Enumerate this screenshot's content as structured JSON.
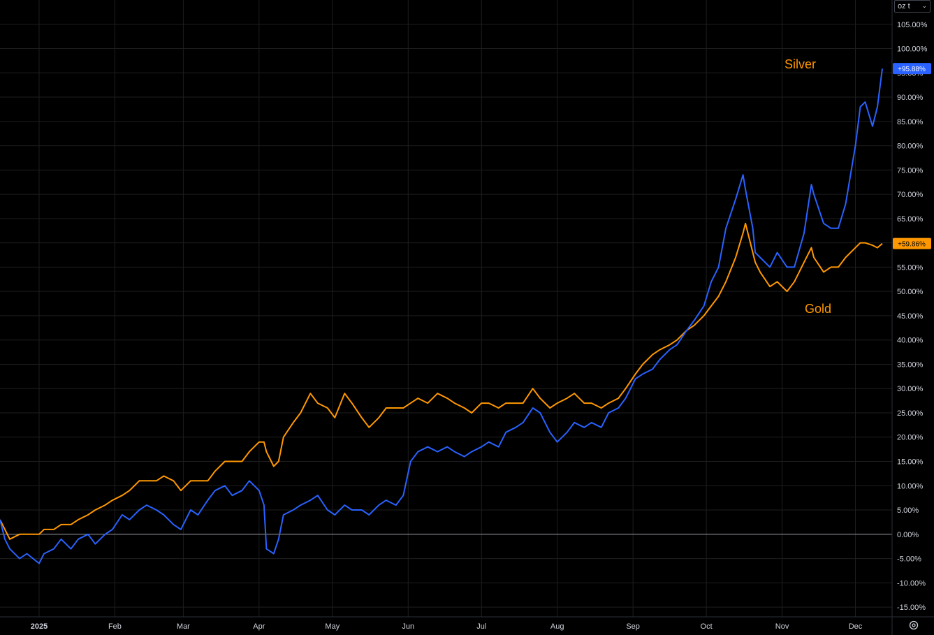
{
  "unit_selector": {
    "value": "oz t",
    "icon": "chevron-down-icon"
  },
  "settings": {
    "icon": "gear-icon"
  },
  "colors": {
    "silver": "#2962ff",
    "gold": "#ff9800",
    "background": "#000000",
    "grid": "#1e1e1e",
    "text": "#d1d4dc",
    "zero_line": "#9598a1"
  },
  "chart_data": {
    "type": "line",
    "y_axis": {
      "min": -17,
      "max": 110,
      "unit": "%",
      "position": "right",
      "ticks": [
        "105.00%",
        "100.00%",
        "95.00%",
        "90.00%",
        "85.00%",
        "80.00%",
        "75.00%",
        "70.00%",
        "65.00%",
        "60.00%",
        "55.00%",
        "50.00%",
        "45.00%",
        "40.00%",
        "35.00%",
        "30.00%",
        "25.00%",
        "20.00%",
        "15.00%",
        "10.00%",
        "5.00%",
        "0.00%",
        "-5.00%",
        "-10.00%",
        "-15.00%"
      ],
      "tick_values": [
        105,
        100,
        95,
        90,
        85,
        80,
        75,
        70,
        65,
        60,
        55,
        50,
        45,
        40,
        35,
        30,
        25,
        20,
        15,
        10,
        5,
        0,
        -5,
        -10,
        -15
      ]
    },
    "x_axis": {
      "range": [
        "2024-12-16",
        "2025-12-16"
      ],
      "labels": [
        {
          "label": "2025",
          "date": "2025-01-01",
          "bold": true
        },
        {
          "label": "Feb",
          "date": "2025-02-01"
        },
        {
          "label": "Mar",
          "date": "2025-03-01"
        },
        {
          "label": "Apr",
          "date": "2025-04-01"
        },
        {
          "label": "May",
          "date": "2025-05-01"
        },
        {
          "label": "Jun",
          "date": "2025-06-01"
        },
        {
          "label": "Jul",
          "date": "2025-07-01"
        },
        {
          "label": "Aug",
          "date": "2025-08-01"
        },
        {
          "label": "Sep",
          "date": "2025-09-01"
        },
        {
          "label": "Oct",
          "date": "2025-10-01"
        },
        {
          "label": "Nov",
          "date": "2025-11-01"
        },
        {
          "label": "Dec",
          "date": "2025-12-01"
        }
      ]
    },
    "grid": true,
    "series": [
      {
        "name": "Silver",
        "color": "#2962ff",
        "last_label": "+95.88%",
        "points": [
          [
            "2024-12-16",
            3
          ],
          [
            "2024-12-18",
            -1
          ],
          [
            "2024-12-20",
            -3
          ],
          [
            "2024-12-24",
            -5
          ],
          [
            "2024-12-27",
            -4
          ],
          [
            "2025-01-01",
            -6
          ],
          [
            "2025-01-03",
            -4
          ],
          [
            "2025-01-07",
            -3
          ],
          [
            "2025-01-10",
            -1
          ],
          [
            "2025-01-14",
            -3
          ],
          [
            "2025-01-17",
            -1
          ],
          [
            "2025-01-21",
            0
          ],
          [
            "2025-01-24",
            -2
          ],
          [
            "2025-01-28",
            0
          ],
          [
            "2025-01-31",
            1
          ],
          [
            "2025-02-04",
            4
          ],
          [
            "2025-02-07",
            3
          ],
          [
            "2025-02-11",
            5
          ],
          [
            "2025-02-14",
            6
          ],
          [
            "2025-02-18",
            5
          ],
          [
            "2025-02-21",
            4
          ],
          [
            "2025-02-25",
            2
          ],
          [
            "2025-02-28",
            1
          ],
          [
            "2025-03-04",
            5
          ],
          [
            "2025-03-07",
            4
          ],
          [
            "2025-03-11",
            7
          ],
          [
            "2025-03-14",
            9
          ],
          [
            "2025-03-18",
            10
          ],
          [
            "2025-03-21",
            8
          ],
          [
            "2025-03-25",
            9
          ],
          [
            "2025-03-28",
            11
          ],
          [
            "2025-04-01",
            9
          ],
          [
            "2025-04-03",
            6
          ],
          [
            "2025-04-04",
            -3
          ],
          [
            "2025-04-07",
            -4
          ],
          [
            "2025-04-09",
            -1
          ],
          [
            "2025-04-11",
            4
          ],
          [
            "2025-04-15",
            5
          ],
          [
            "2025-04-18",
            6
          ],
          [
            "2025-04-22",
            7
          ],
          [
            "2025-04-25",
            8
          ],
          [
            "2025-04-29",
            5
          ],
          [
            "2025-05-02",
            4
          ],
          [
            "2025-05-06",
            6
          ],
          [
            "2025-05-09",
            5
          ],
          [
            "2025-05-13",
            5
          ],
          [
            "2025-05-16",
            4
          ],
          [
            "2025-05-20",
            6
          ],
          [
            "2025-05-23",
            7
          ],
          [
            "2025-05-27",
            6
          ],
          [
            "2025-05-30",
            8
          ],
          [
            "2025-06-02",
            15
          ],
          [
            "2025-06-05",
            17
          ],
          [
            "2025-06-09",
            18
          ],
          [
            "2025-06-13",
            17
          ],
          [
            "2025-06-17",
            18
          ],
          [
            "2025-06-20",
            17
          ],
          [
            "2025-06-24",
            16
          ],
          [
            "2025-06-27",
            17
          ],
          [
            "2025-07-01",
            18
          ],
          [
            "2025-07-04",
            19
          ],
          [
            "2025-07-08",
            18
          ],
          [
            "2025-07-11",
            21
          ],
          [
            "2025-07-15",
            22
          ],
          [
            "2025-07-18",
            23
          ],
          [
            "2025-07-22",
            26
          ],
          [
            "2025-07-25",
            25
          ],
          [
            "2025-07-29",
            21
          ],
          [
            "2025-08-01",
            19
          ],
          [
            "2025-08-05",
            21
          ],
          [
            "2025-08-08",
            23
          ],
          [
            "2025-08-12",
            22
          ],
          [
            "2025-08-15",
            23
          ],
          [
            "2025-08-19",
            22
          ],
          [
            "2025-08-22",
            25
          ],
          [
            "2025-08-26",
            26
          ],
          [
            "2025-08-29",
            28
          ],
          [
            "2025-09-02",
            32
          ],
          [
            "2025-09-05",
            33
          ],
          [
            "2025-09-09",
            34
          ],
          [
            "2025-09-12",
            36
          ],
          [
            "2025-09-16",
            38
          ],
          [
            "2025-09-19",
            39
          ],
          [
            "2025-09-23",
            42
          ],
          [
            "2025-09-26",
            44
          ],
          [
            "2025-09-30",
            47
          ],
          [
            "2025-10-03",
            52
          ],
          [
            "2025-10-06",
            55
          ],
          [
            "2025-10-09",
            63
          ],
          [
            "2025-10-13",
            69
          ],
          [
            "2025-10-16",
            74
          ],
          [
            "2025-10-17",
            71
          ],
          [
            "2025-10-20",
            63
          ],
          [
            "2025-10-21",
            58
          ],
          [
            "2025-10-23",
            57
          ],
          [
            "2025-10-27",
            55
          ],
          [
            "2025-10-30",
            58
          ],
          [
            "2025-11-03",
            55
          ],
          [
            "2025-11-06",
            55
          ],
          [
            "2025-11-10",
            62
          ],
          [
            "2025-11-13",
            72
          ],
          [
            "2025-11-14",
            70
          ],
          [
            "2025-11-18",
            64
          ],
          [
            "2025-11-21",
            63
          ],
          [
            "2025-11-24",
            63
          ],
          [
            "2025-11-27",
            68
          ],
          [
            "2025-12-01",
            80
          ],
          [
            "2025-12-03",
            88
          ],
          [
            "2025-12-05",
            89
          ],
          [
            "2025-12-08",
            84
          ],
          [
            "2025-12-10",
            88
          ],
          [
            "2025-12-12",
            95.88
          ]
        ]
      },
      {
        "name": "Gold",
        "color": "#ff9800",
        "last_label": "+59.86%",
        "points": [
          [
            "2024-12-16",
            3
          ],
          [
            "2024-12-18",
            1
          ],
          [
            "2024-12-20",
            -1
          ],
          [
            "2024-12-24",
            0
          ],
          [
            "2024-12-27",
            0
          ],
          [
            "2025-01-01",
            0
          ],
          [
            "2025-01-03",
            1
          ],
          [
            "2025-01-07",
            1
          ],
          [
            "2025-01-10",
            2
          ],
          [
            "2025-01-14",
            2
          ],
          [
            "2025-01-17",
            3
          ],
          [
            "2025-01-21",
            4
          ],
          [
            "2025-01-24",
            5
          ],
          [
            "2025-01-28",
            6
          ],
          [
            "2025-01-31",
            7
          ],
          [
            "2025-02-04",
            8
          ],
          [
            "2025-02-07",
            9
          ],
          [
            "2025-02-11",
            11
          ],
          [
            "2025-02-14",
            11
          ],
          [
            "2025-02-18",
            11
          ],
          [
            "2025-02-21",
            12
          ],
          [
            "2025-02-25",
            11
          ],
          [
            "2025-02-28",
            9
          ],
          [
            "2025-03-04",
            11
          ],
          [
            "2025-03-07",
            11
          ],
          [
            "2025-03-11",
            11
          ],
          [
            "2025-03-14",
            13
          ],
          [
            "2025-03-18",
            15
          ],
          [
            "2025-03-21",
            15
          ],
          [
            "2025-03-25",
            15
          ],
          [
            "2025-03-28",
            17
          ],
          [
            "2025-04-01",
            19
          ],
          [
            "2025-04-03",
            19
          ],
          [
            "2025-04-04",
            17
          ],
          [
            "2025-04-07",
            14
          ],
          [
            "2025-04-09",
            15
          ],
          [
            "2025-04-11",
            20
          ],
          [
            "2025-04-15",
            23
          ],
          [
            "2025-04-18",
            25
          ],
          [
            "2025-04-22",
            29
          ],
          [
            "2025-04-25",
            27
          ],
          [
            "2025-04-29",
            26
          ],
          [
            "2025-05-02",
            24
          ],
          [
            "2025-05-06",
            29
          ],
          [
            "2025-05-09",
            27
          ],
          [
            "2025-05-13",
            24
          ],
          [
            "2025-05-16",
            22
          ],
          [
            "2025-05-20",
            24
          ],
          [
            "2025-05-23",
            26
          ],
          [
            "2025-05-27",
            26
          ],
          [
            "2025-05-30",
            26
          ],
          [
            "2025-06-02",
            27
          ],
          [
            "2025-06-05",
            28
          ],
          [
            "2025-06-09",
            27
          ],
          [
            "2025-06-13",
            29
          ],
          [
            "2025-06-17",
            28
          ],
          [
            "2025-06-20",
            27
          ],
          [
            "2025-06-24",
            26
          ],
          [
            "2025-06-27",
            25
          ],
          [
            "2025-07-01",
            27
          ],
          [
            "2025-07-04",
            27
          ],
          [
            "2025-07-08",
            26
          ],
          [
            "2025-07-11",
            27
          ],
          [
            "2025-07-15",
            27
          ],
          [
            "2025-07-18",
            27
          ],
          [
            "2025-07-22",
            30
          ],
          [
            "2025-07-25",
            28
          ],
          [
            "2025-07-29",
            26
          ],
          [
            "2025-08-01",
            27
          ],
          [
            "2025-08-05",
            28
          ],
          [
            "2025-08-08",
            29
          ],
          [
            "2025-08-12",
            27
          ],
          [
            "2025-08-15",
            27
          ],
          [
            "2025-08-19",
            26
          ],
          [
            "2025-08-22",
            27
          ],
          [
            "2025-08-26",
            28
          ],
          [
            "2025-08-29",
            30
          ],
          [
            "2025-09-02",
            33
          ],
          [
            "2025-09-05",
            35
          ],
          [
            "2025-09-09",
            37
          ],
          [
            "2025-09-12",
            38
          ],
          [
            "2025-09-16",
            39
          ],
          [
            "2025-09-19",
            40
          ],
          [
            "2025-09-23",
            42
          ],
          [
            "2025-09-26",
            43
          ],
          [
            "2025-09-30",
            45
          ],
          [
            "2025-10-03",
            47
          ],
          [
            "2025-10-06",
            49
          ],
          [
            "2025-10-09",
            52
          ],
          [
            "2025-10-13",
            57
          ],
          [
            "2025-10-16",
            62
          ],
          [
            "2025-10-17",
            64
          ],
          [
            "2025-10-20",
            58
          ],
          [
            "2025-10-21",
            56
          ],
          [
            "2025-10-23",
            54
          ],
          [
            "2025-10-27",
            51
          ],
          [
            "2025-10-30",
            52
          ],
          [
            "2025-11-03",
            50
          ],
          [
            "2025-11-06",
            52
          ],
          [
            "2025-11-10",
            56
          ],
          [
            "2025-11-13",
            59
          ],
          [
            "2025-11-14",
            57
          ],
          [
            "2025-11-18",
            54
          ],
          [
            "2025-11-21",
            55
          ],
          [
            "2025-11-24",
            55
          ],
          [
            "2025-11-27",
            57
          ],
          [
            "2025-12-01",
            59
          ],
          [
            "2025-12-03",
            60
          ],
          [
            "2025-12-05",
            60
          ],
          [
            "2025-12-08",
            59.5
          ],
          [
            "2025-12-10",
            59
          ],
          [
            "2025-12-12",
            59.86
          ]
        ]
      }
    ]
  }
}
